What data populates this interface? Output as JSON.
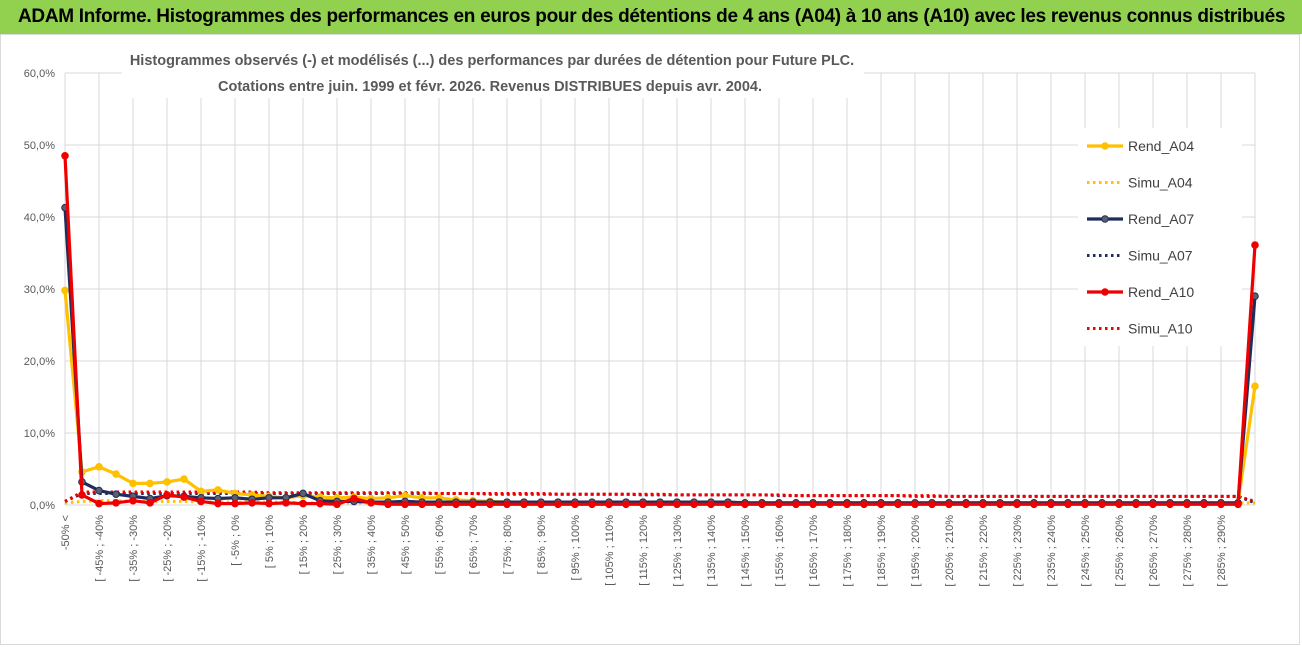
{
  "header": {
    "title": "ADAM Informe. Histogrammes des performances en euros pour des détentions de 4 ans (A04) à 10 ans (A10) avec les revenus connus distribués"
  },
  "chart_data": {
    "type": "line",
    "title_line1": "Histogrammes observés (-)  et modélisés (...) des performances par durées de détention pour Future PLC.",
    "title_line2": "Cotations entre juin. 1999 et févr. 2026. Revenus DISTRIBUES depuis avr. 2004.",
    "ylim": [
      0,
      60
    ],
    "yticks": [
      "0,0%",
      "10,0%",
      "20,0%",
      "30,0%",
      "40,0%",
      "50,0%",
      "60,0%"
    ],
    "grid": true,
    "legend_position": "right",
    "x_labels_shown": [
      "-50% <",
      "[ -45% ; -40%",
      "[ -35% ; -30%",
      "[ -25% ; -20%",
      "[ -15% ; -10%",
      "[ -5% ; 0%",
      "[ 5% ; 10%",
      "[ 15% ; 20%",
      "[ 25% ; 30%",
      "[ 35% ; 40%",
      "[ 45% ; 50%",
      "[ 55% ; 60%",
      "[ 65% ; 70%",
      "[ 75% ; 80%",
      "[ 85% ; 90%",
      "[ 95% ; 100%",
      "[ 105% ; 110%",
      "[ 115% ; 120%",
      "[ 125% ; 130%",
      "[ 135% ; 140%",
      "[ 145% ; 150%",
      "[ 155% ; 160%",
      "[ 165% ; 170%",
      "[ 175% ; 180%",
      "[ 185% ; 190%",
      "[ 195% ; 200%",
      "[ 205% ; 210%",
      "[ 215% ; 220%",
      "[ 225% ; 230%",
      "[ 235% ; 240%",
      "[ 245% ; 250%",
      "[ 255% ; 260%",
      "[ 265% ; 270%",
      "[ 275% ; 280%",
      "[ 285% ; 290%"
    ],
    "series": [
      {
        "name": "Rend_A04",
        "color": "#FFC000",
        "style": "solid",
        "marker": true,
        "values": [
          29.8,
          4.6,
          5.3,
          4.3,
          3.0,
          3.0,
          3.2,
          3.6,
          1.9,
          2.1,
          1.6,
          1.4,
          1.2,
          1.0,
          1.3,
          1.1,
          1.0,
          1.1,
          0.9,
          1.0,
          1.3,
          1.0,
          1.0,
          0.7,
          0.6,
          0.5,
          0.4,
          0.4,
          0.3,
          0.3,
          0.3,
          0.3,
          0.3,
          0.3,
          0.3,
          0.3,
          0.3,
          0.3,
          0.3,
          0.3,
          0.3,
          0.3,
          0.3,
          0.3,
          0.3,
          0.3,
          0.3,
          0.3,
          0.3,
          0.3,
          0.3,
          0.3,
          0.3,
          0.3,
          0.3,
          0.3,
          0.3,
          0.3,
          0.3,
          0.3,
          0.3,
          0.3,
          0.3,
          0.3,
          0.3,
          0.3,
          0.3,
          0.3,
          0.3,
          0.3,
          16.5
        ]
      },
      {
        "name": "Simu_A04",
        "color": "#FFC000",
        "style": "dotted",
        "marker": false,
        "values": [
          0.3,
          0.5,
          0.6,
          0.6,
          0.5,
          0.5,
          0.5,
          0.5,
          0.4,
          0.4,
          0.4,
          0.4,
          0.4,
          0.4,
          0.3,
          0.3,
          0.3,
          0.3,
          0.3,
          0.3,
          0.3,
          0.3,
          0.3,
          0.3,
          0.3,
          0.3,
          0.3,
          0.3,
          0.3,
          0.3,
          0.3,
          0.3,
          0.3,
          0.3,
          0.3,
          0.3,
          0.3,
          0.3,
          0.3,
          0.3,
          0.3,
          0.3,
          0.3,
          0.3,
          0.3,
          0.3,
          0.3,
          0.3,
          0.3,
          0.3,
          0.3,
          0.3,
          0.3,
          0.3,
          0.3,
          0.3,
          0.3,
          0.3,
          0.3,
          0.3,
          0.3,
          0.3,
          0.3,
          0.3,
          0.3,
          0.3,
          0.3,
          0.3,
          0.3,
          0.3,
          0.3
        ]
      },
      {
        "name": "Rend_A07",
        "color": "#1F2D5C",
        "style": "solid",
        "marker": true,
        "values": [
          41.3,
          3.2,
          2.0,
          1.5,
          1.2,
          0.9,
          1.3,
          1.2,
          1.0,
          0.9,
          1.0,
          0.8,
          1.0,
          1.0,
          1.6,
          0.6,
          0.5,
          0.5,
          0.4,
          0.4,
          0.5,
          0.4,
          0.4,
          0.4,
          0.4,
          0.4,
          0.4,
          0.4,
          0.4,
          0.4,
          0.4,
          0.4,
          0.4,
          0.4,
          0.4,
          0.4,
          0.4,
          0.4,
          0.4,
          0.4,
          0.3,
          0.3,
          0.3,
          0.3,
          0.3,
          0.3,
          0.3,
          0.3,
          0.3,
          0.3,
          0.3,
          0.3,
          0.3,
          0.3,
          0.3,
          0.3,
          0.3,
          0.3,
          0.3,
          0.3,
          0.3,
          0.3,
          0.3,
          0.3,
          0.3,
          0.3,
          0.3,
          0.3,
          0.3,
          0.3,
          29.0
        ]
      },
      {
        "name": "Simu_A07",
        "color": "#1F2D5C",
        "style": "dotted",
        "marker": false,
        "values": [
          0.5,
          1.6,
          1.6,
          1.6,
          1.6,
          1.6,
          1.6,
          1.6,
          1.6,
          1.6,
          1.6,
          1.6,
          1.6,
          1.6,
          1.6,
          1.6,
          1.6,
          1.6,
          1.6,
          1.6,
          1.6,
          1.6,
          1.6,
          1.6,
          1.6,
          1.5,
          1.5,
          1.5,
          1.5,
          1.5,
          1.5,
          1.5,
          1.5,
          1.5,
          1.4,
          1.4,
          1.4,
          1.4,
          1.4,
          1.4,
          1.4,
          1.4,
          1.3,
          1.3,
          1.3,
          1.3,
          1.3,
          1.3,
          1.3,
          1.3,
          1.2,
          1.2,
          1.2,
          1.2,
          1.2,
          1.2,
          1.2,
          1.2,
          1.2,
          1.2,
          1.2,
          1.2,
          1.2,
          1.2,
          1.2,
          1.2,
          1.2,
          1.2,
          1.2,
          1.2,
          0.3
        ]
      },
      {
        "name": "Rend_A10",
        "color": "#EE0000",
        "style": "solid",
        "marker": true,
        "values": [
          48.5,
          1.4,
          0.2,
          0.3,
          0.6,
          0.3,
          1.4,
          1.1,
          0.5,
          0.2,
          0.2,
          0.3,
          0.2,
          0.3,
          0.2,
          0.2,
          0.1,
          0.9,
          0.3,
          0.1,
          0.1,
          0.1,
          0.1,
          0.1,
          0.1,
          0.1,
          0.1,
          0.1,
          0.1,
          0.1,
          0.1,
          0.1,
          0.1,
          0.1,
          0.1,
          0.1,
          0.1,
          0.1,
          0.1,
          0.1,
          0.1,
          0.1,
          0.1,
          0.1,
          0.1,
          0.1,
          0.1,
          0.1,
          0.1,
          0.1,
          0.1,
          0.1,
          0.1,
          0.1,
          0.1,
          0.1,
          0.1,
          0.1,
          0.1,
          0.1,
          0.1,
          0.1,
          0.1,
          0.1,
          0.1,
          0.1,
          0.1,
          0.1,
          0.1,
          0.1,
          36.1
        ]
      },
      {
        "name": "Simu_A10",
        "color": "#EE0000",
        "style": "dotted",
        "marker": false,
        "values": [
          0.5,
          1.8,
          1.8,
          1.8,
          1.8,
          1.8,
          1.8,
          1.8,
          1.8,
          1.8,
          1.8,
          1.8,
          1.7,
          1.7,
          1.7,
          1.7,
          1.7,
          1.7,
          1.7,
          1.7,
          1.7,
          1.7,
          1.6,
          1.6,
          1.6,
          1.6,
          1.6,
          1.6,
          1.6,
          1.5,
          1.5,
          1.5,
          1.5,
          1.5,
          1.5,
          1.5,
          1.4,
          1.4,
          1.4,
          1.4,
          1.4,
          1.4,
          1.4,
          1.3,
          1.3,
          1.3,
          1.3,
          1.3,
          1.3,
          1.3,
          1.3,
          1.3,
          1.2,
          1.2,
          1.2,
          1.2,
          1.2,
          1.2,
          1.2,
          1.2,
          1.2,
          1.2,
          1.2,
          1.2,
          1.2,
          1.2,
          1.2,
          1.2,
          1.2,
          1.2,
          0.5
        ]
      }
    ]
  }
}
